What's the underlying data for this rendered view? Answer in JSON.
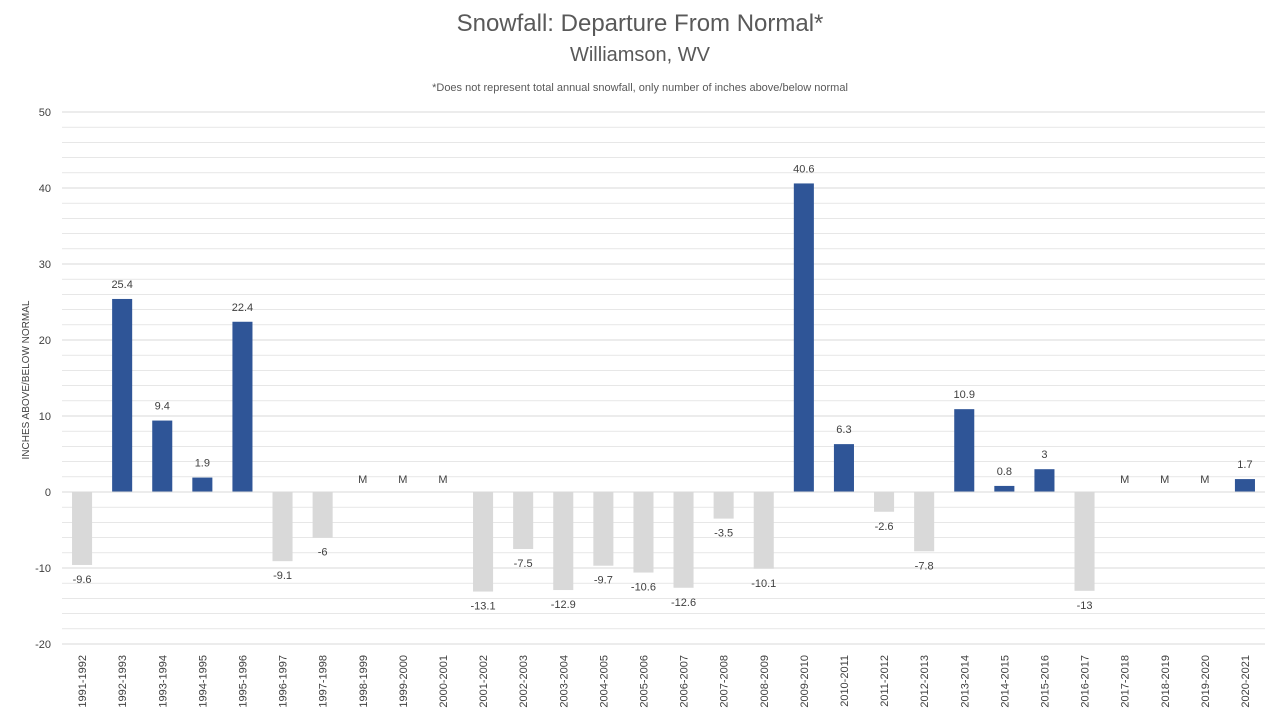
{
  "chart_data": {
    "type": "bar",
    "title": "Snowfall: Departure From Normal*",
    "subtitle": "Williamson, WV",
    "note": "*Does not represent  total annual snowfall, only number of inches above/below normal",
    "ylabel": "INCHES ABOVE/BELOW NORMAL",
    "xlabel": "",
    "ylim": [
      -20,
      50
    ],
    "yticks": [
      -20,
      -10,
      0,
      10,
      20,
      30,
      40,
      50
    ],
    "minor_grid_step": 2,
    "grid": true,
    "legend": "none",
    "missing_label": "M",
    "colors": {
      "positive": "#2f5597",
      "negative": "#d9d9d9",
      "grid": "#d9d9d9",
      "axis": "#d9d9d9"
    },
    "categories": [
      "1991-1992",
      "1992-1993",
      "1993-1994",
      "1994-1995",
      "1995-1996",
      "1996-1997",
      "1997-1998",
      "1998-1999",
      "1999-2000",
      "2000-2001",
      "2001-2002",
      "2002-2003",
      "2003-2004",
      "2004-2005",
      "2005-2006",
      "2006-2007",
      "2007-2008",
      "2008-2009",
      "2009-2010",
      "2010-2011",
      "2011-2012",
      "2012-2013",
      "2013-2014",
      "2014-2015",
      "2015-2016",
      "2016-2017",
      "2017-2018",
      "2018-2019",
      "2019-2020",
      "2020-2021"
    ],
    "values": [
      -9.6,
      25.4,
      9.4,
      1.9,
      22.4,
      -9.1,
      -6,
      null,
      null,
      null,
      -13.1,
      -7.5,
      -12.9,
      -9.7,
      -10.6,
      -12.6,
      -3.5,
      -10.1,
      40.6,
      6.3,
      -2.6,
      -7.8,
      10.9,
      0.8,
      3,
      -13,
      null,
      null,
      null,
      1.7
    ],
    "data_labels": [
      "-9.6",
      "25.4",
      "9.4",
      "1.9",
      "22.4",
      "-9.1",
      "-6",
      "M",
      "M",
      "M",
      "-13.1",
      "-7.5",
      "-12.9",
      "-9.7",
      "-10.6",
      "-12.6",
      "-3.5",
      "-10.1",
      "40.6",
      "6.3",
      "-2.6",
      "-7.8",
      "10.9",
      "0.8",
      "3",
      "-13",
      "M",
      "M",
      "M",
      "1.7"
    ]
  }
}
